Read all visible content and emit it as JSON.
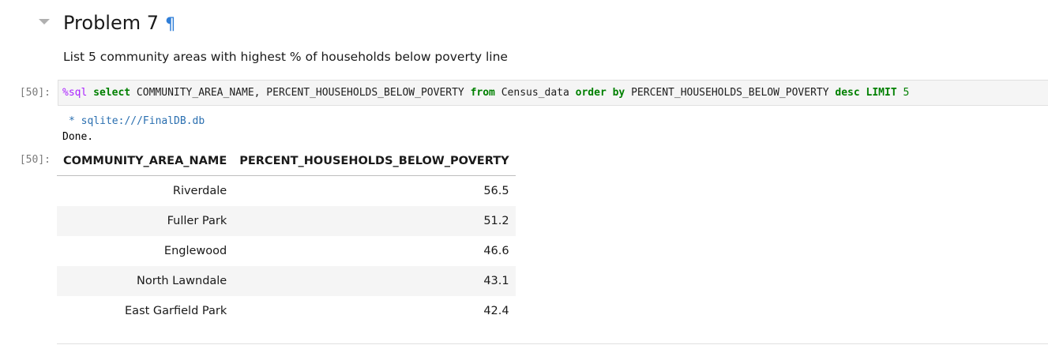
{
  "heading": {
    "title": "Problem 7",
    "anchor": "¶"
  },
  "markdown": {
    "text": "List 5 community areas with highest % of households below poverty line"
  },
  "input_prompt": "[50]:",
  "output_prompt": "[50]:",
  "code": {
    "magic": "%sql",
    "sp1": " ",
    "kw_select": "select",
    "t1": " COMMUNITY_AREA_NAME, PERCENT_HOUSEHOLDS_BELOW_POVERTY ",
    "kw_from": "from",
    "t2": " Census_data ",
    "kw_order": "order",
    "sp2": " ",
    "kw_by": "by",
    "t3": " PERCENT_HOUSEHOLDS_BELOW_POVERTY ",
    "kw_desc": "desc",
    "sp3": " ",
    "kw_limit": "LIMIT",
    "sp4": " ",
    "num": "5"
  },
  "stream": {
    "db_line": "* sqlite:///FinalDB.db",
    "done": "Done."
  },
  "table": {
    "columns": [
      "COMMUNITY_AREA_NAME",
      "PERCENT_HOUSEHOLDS_BELOW_POVERTY"
    ],
    "rows": [
      [
        "Riverdale",
        "56.5"
      ],
      [
        "Fuller Park",
        "51.2"
      ],
      [
        "Englewood",
        "46.6"
      ],
      [
        "North Lawndale",
        "43.1"
      ],
      [
        "East Garfield Park",
        "42.4"
      ]
    ]
  }
}
